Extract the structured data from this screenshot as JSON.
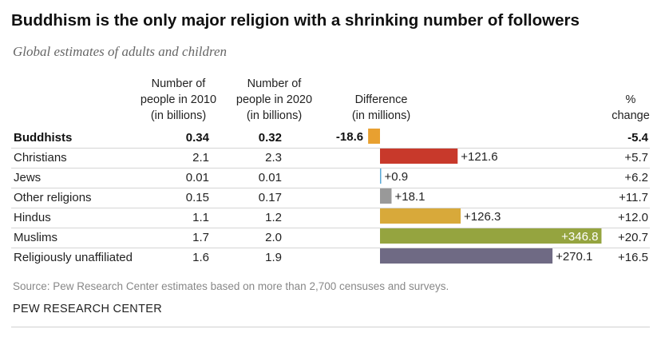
{
  "title": "Buddhism is the only major religion with a shrinking number of followers",
  "subtitle": "Global estimates of adults and children",
  "headers": {
    "col2010": [
      "Number of",
      "people in 2010",
      "(in billions)"
    ],
    "col2020": [
      "Number of",
      "people in 2020",
      "(in billions)"
    ],
    "diff": [
      "Difference",
      "(in millions)"
    ],
    "pct": [
      "%",
      "change"
    ]
  },
  "rows": [
    {
      "name": "Buddhists",
      "v2010": "0.34",
      "v2020": "0.32",
      "diff_label": "-18.6",
      "pct": "-5.4",
      "bold": true
    },
    {
      "name": "Christians",
      "v2010": "2.1",
      "v2020": "2.3",
      "diff_label": "+121.6",
      "pct": "+5.7",
      "bold": false
    },
    {
      "name": "Jews",
      "v2010": "0.01",
      "v2020": "0.01",
      "diff_label": "+0.9",
      "pct": "+6.2",
      "bold": false
    },
    {
      "name": "Other religions",
      "v2010": "0.15",
      "v2020": "0.17",
      "diff_label": "+18.1",
      "pct": "+11.7",
      "bold": false
    },
    {
      "name": "Hindus",
      "v2010": "1.1",
      "v2020": "1.2",
      "diff_label": "+126.3",
      "pct": "+12.0",
      "bold": false
    },
    {
      "name": "Muslims",
      "v2010": "1.7",
      "v2020": "2.0",
      "diff_label": "+346.8",
      "pct": "+20.7",
      "bold": false
    },
    {
      "name": "Religiously unaffiliated",
      "v2010": "1.6",
      "v2020": "1.9",
      "diff_label": "+270.1",
      "pct": "+16.5",
      "bold": false
    }
  ],
  "chart_data": {
    "type": "bar",
    "orientation": "horizontal",
    "title": "Difference",
    "xlabel": "(in millions)",
    "categories": [
      "Buddhists",
      "Christians",
      "Jews",
      "Other religions",
      "Hindus",
      "Muslims",
      "Religiously unaffiliated"
    ],
    "values": [
      -18.6,
      121.6,
      0.9,
      18.1,
      126.3,
      346.8,
      270.1
    ],
    "colors": [
      "#e8a030",
      "#c8392b",
      "#5aa9d6",
      "#999999",
      "#d8a93a",
      "#95a43f",
      "#6f6a84"
    ],
    "xlim": [
      -18.6,
      346.8
    ],
    "grid": false
  },
  "source": "Source: Pew Research Center estimates based on more than 2,700 censuses and surveys.",
  "brand": "PEW RESEARCH CENTER"
}
